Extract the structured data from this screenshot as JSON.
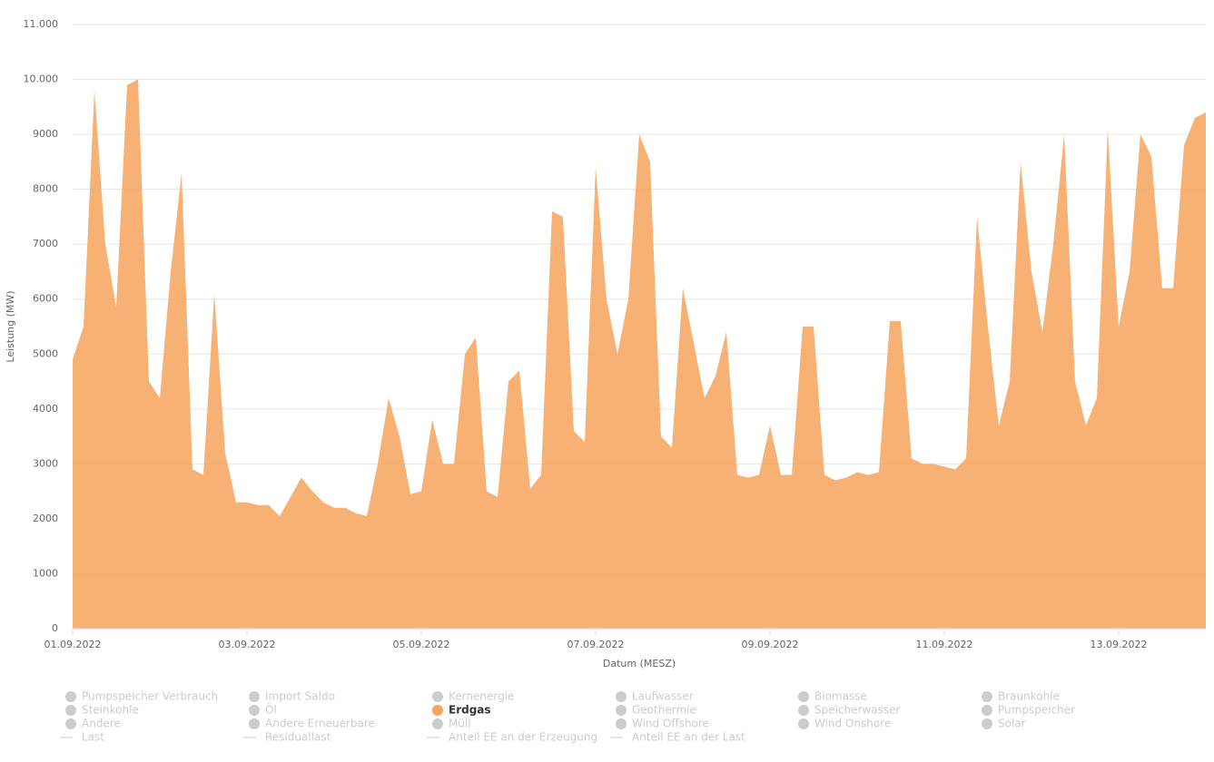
{
  "chart_data": {
    "type": "area",
    "xlabel": "Datum (MESZ)",
    "ylabel": "Leistung (MW)",
    "xlim": [
      0,
      13
    ],
    "xticks": [
      {
        "value": 0,
        "label": "01.09.2022"
      },
      {
        "value": 2,
        "label": "03.09.2022"
      },
      {
        "value": 4,
        "label": "05.09.2022"
      },
      {
        "value": 6,
        "label": "07.09.2022"
      },
      {
        "value": 8,
        "label": "09.09.2022"
      },
      {
        "value": 10,
        "label": "11.09.2022"
      },
      {
        "value": 12,
        "label": "13.09.2022"
      }
    ],
    "ylim": [
      0,
      11000
    ],
    "yticks": [
      0,
      1000,
      2000,
      3000,
      4000,
      5000,
      6000,
      7000,
      8000,
      9000,
      {
        "value": 10000,
        "label": "10.000"
      },
      {
        "value": 11000,
        "label": "11.000"
      }
    ],
    "grid": true,
    "x": [
      0,
      0.125,
      0.25,
      0.375,
      0.5,
      0.625,
      0.75,
      0.875,
      1,
      1.125,
      1.25,
      1.375,
      1.5,
      1.625,
      1.75,
      1.875,
      2,
      2.125,
      2.25,
      2.375,
      2.5,
      2.625,
      2.75,
      2.875,
      3,
      3.125,
      3.25,
      3.375,
      3.5,
      3.625,
      3.75,
      3.875,
      4,
      4.125,
      4.25,
      4.375,
      4.5,
      4.625,
      4.75,
      4.875,
      5,
      5.125,
      5.25,
      5.375,
      5.5,
      5.625,
      5.75,
      5.875,
      6,
      6.125,
      6.25,
      6.375,
      6.5,
      6.625,
      6.75,
      6.875,
      7,
      7.125,
      7.25,
      7.375,
      7.5,
      7.625,
      7.75,
      7.875,
      8,
      8.125,
      8.25,
      8.375,
      8.5,
      8.625,
      8.75,
      8.875,
      9,
      9.125,
      9.25,
      9.375,
      9.5,
      9.625,
      9.75,
      9.875,
      10,
      10.125,
      10.25,
      10.375,
      10.5,
      10.625,
      10.75,
      10.875,
      11,
      11.125,
      11.25,
      11.375,
      11.5,
      11.625,
      11.75,
      11.875,
      12,
      12.125,
      12.25,
      12.375,
      12.5,
      12.625,
      12.75,
      12.875,
      13
    ],
    "series": [
      {
        "name": "Pumpspeicher Verbrauch",
        "symbol": "dot",
        "visible": false,
        "color": "#cccccc"
      },
      {
        "name": "Import Saldo",
        "symbol": "dot",
        "visible": false,
        "color": "#cccccc"
      },
      {
        "name": "Kernenergie",
        "symbol": "dot",
        "visible": false,
        "color": "#cccccc"
      },
      {
        "name": "Laufwasser",
        "symbol": "dot",
        "visible": false,
        "color": "#cccccc"
      },
      {
        "name": "Biomasse",
        "symbol": "dot",
        "visible": false,
        "color": "#cccccc"
      },
      {
        "name": "Braunkohle",
        "symbol": "dot",
        "visible": false,
        "color": "#cccccc"
      },
      {
        "name": "Steinkohle",
        "symbol": "dot",
        "visible": false,
        "color": "#cccccc"
      },
      {
        "name": "Öl",
        "symbol": "dot",
        "visible": false,
        "color": "#cccccc"
      },
      {
        "name": "Erdgas",
        "symbol": "dot",
        "visible": true,
        "color": "#f7a35c",
        "values": [
          4900,
          5500,
          9800,
          7000,
          5850,
          9900,
          10000,
          4500,
          4200,
          6500,
          8300,
          2900,
          2800,
          6100,
          3200,
          2300,
          2300,
          2250,
          2250,
          2050,
          2400,
          2750,
          2500,
          2300,
          2200,
          2200,
          2100,
          2050,
          3000,
          4200,
          3500,
          2450,
          2500,
          3800,
          3000,
          3000,
          5000,
          5300,
          2500,
          2400,
          4500,
          4700,
          2550,
          2800,
          7600,
          7500,
          3600,
          3400,
          8400,
          6000,
          5000,
          6000,
          9000,
          8500,
          3500,
          3300,
          6200,
          5200,
          4200,
          4600,
          5400,
          2800,
          2750,
          2800,
          3700,
          2800,
          2800,
          5500,
          5500,
          2800,
          2700,
          2750,
          2850,
          2800,
          2850,
          5600,
          5600,
          3100,
          3000,
          3000,
          2950,
          2900,
          3100,
          7500,
          5500,
          3700,
          4500,
          8500,
          6500,
          5400,
          7000,
          9000,
          4500,
          3700,
          4200,
          9100,
          5500,
          6500,
          9000,
          8600,
          6200,
          6200,
          8800,
          9300,
          9400
        ]
      },
      {
        "name": "Geothermie",
        "symbol": "dot",
        "visible": false,
        "color": "#cccccc"
      },
      {
        "name": "Speicherwasser",
        "symbol": "dot",
        "visible": false,
        "color": "#cccccc"
      },
      {
        "name": "Pumpspeicher",
        "symbol": "dot",
        "visible": false,
        "color": "#cccccc"
      },
      {
        "name": "Andere",
        "symbol": "dot",
        "visible": false,
        "color": "#cccccc"
      },
      {
        "name": "Andere Erneuerbare",
        "symbol": "dot",
        "visible": false,
        "color": "#cccccc"
      },
      {
        "name": "Müll",
        "symbol": "dot",
        "visible": false,
        "color": "#cccccc"
      },
      {
        "name": "Wind Offshore",
        "symbol": "dot",
        "visible": false,
        "color": "#cccccc"
      },
      {
        "name": "Wind Onshore",
        "symbol": "dot",
        "visible": false,
        "color": "#cccccc"
      },
      {
        "name": "Solar",
        "symbol": "dot",
        "visible": false,
        "color": "#cccccc"
      },
      {
        "name": "Last",
        "symbol": "line",
        "visible": false,
        "color": "#cccccc"
      },
      {
        "name": "Residuallast",
        "symbol": "line",
        "visible": false,
        "color": "#cccccc"
      },
      {
        "name": "Anteil EE an der Erzeugung",
        "symbol": "line",
        "visible": false,
        "color": "#cccccc"
      },
      {
        "name": "Anteil EE an der Last",
        "symbol": "line",
        "visible": false,
        "color": "#cccccc"
      }
    ]
  }
}
